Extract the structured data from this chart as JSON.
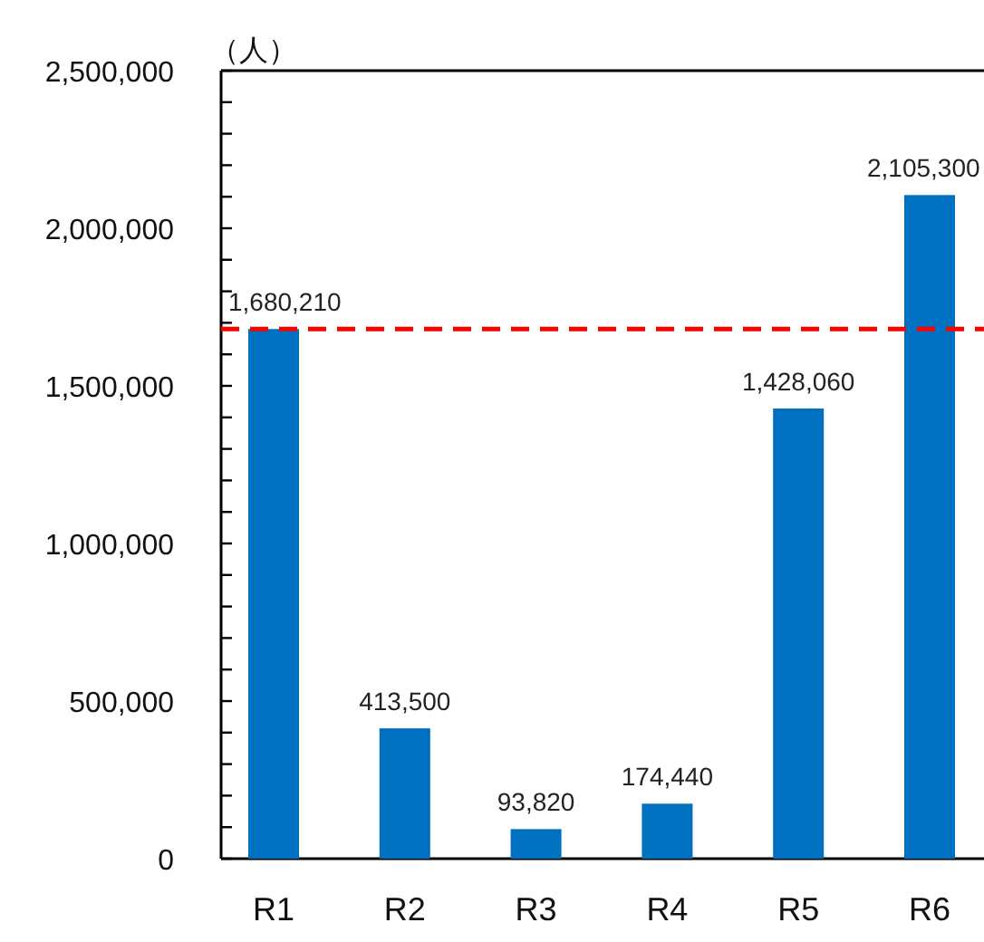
{
  "chart_data": {
    "type": "bar",
    "ylabel": "（人）",
    "categories": [
      "R1",
      "R2",
      "R3",
      "R4",
      "R5",
      "R6"
    ],
    "values": [
      1680210,
      413500,
      93820,
      174440,
      1428060,
      2105300
    ],
    "color": "#0070c0",
    "value_labels": [
      "1,680,210",
      "413,500",
      "93,820",
      "174,440",
      "1,428,060",
      "2,105,300"
    ],
    "ylim": [
      0,
      2500000
    ],
    "yticks": [
      {
        "value": 0,
        "label": "0"
      },
      {
        "value": 100000,
        "label": null
      },
      {
        "value": 200000,
        "label": null
      },
      {
        "value": 300000,
        "label": null
      },
      {
        "value": 400000,
        "label": null
      },
      {
        "value": 500000,
        "label": "500,000"
      },
      {
        "value": 600000,
        "label": null
      },
      {
        "value": 700000,
        "label": null
      },
      {
        "value": 800000,
        "label": null
      },
      {
        "value": 900000,
        "label": null
      },
      {
        "value": 1000000,
        "label": "1,000,000"
      },
      {
        "value": 1100000,
        "label": null
      },
      {
        "value": 1200000,
        "label": null
      },
      {
        "value": 1300000,
        "label": null
      },
      {
        "value": 1400000,
        "label": null
      },
      {
        "value": 1500000,
        "label": "1,500,000"
      },
      {
        "value": 1600000,
        "label": null
      },
      {
        "value": 1700000,
        "label": null
      },
      {
        "value": 1800000,
        "label": null
      },
      {
        "value": 1900000,
        "label": null
      },
      {
        "value": 2000000,
        "label": "2,000,000"
      },
      {
        "value": 2100000,
        "label": null
      },
      {
        "value": 2200000,
        "label": null
      },
      {
        "value": 2300000,
        "label": null
      },
      {
        "value": 2400000,
        "label": null
      },
      {
        "value": 2500000,
        "label": "2,500,000"
      }
    ],
    "ref_lines": [
      {
        "axis": "y",
        "value": 1680210,
        "color": "#ff0000",
        "line_style": "dashed"
      }
    ]
  }
}
